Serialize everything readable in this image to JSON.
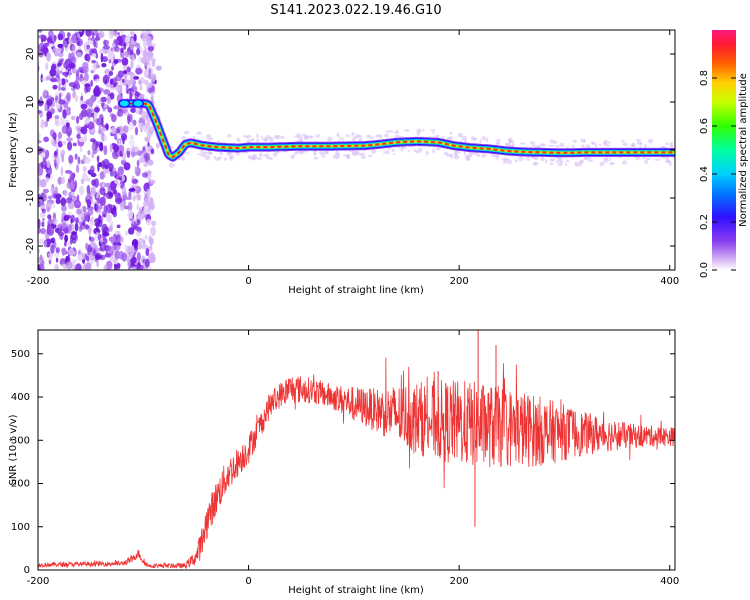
{
  "title": "S141.2023.022.19.46.G10",
  "colors": {
    "snr_line": "#ee3333",
    "spectrum_noise": "#7a1fe6",
    "spectrum_track_core": "#ff2a2a"
  },
  "chart_data": [
    {
      "type": "heatmap",
      "name": "spectrogram",
      "xlabel": "Height of straight line (km)",
      "ylabel": "Frequency (Hz)",
      "xlim": [
        -200,
        405
      ],
      "ylim": [
        -25,
        25
      ],
      "xticks": [
        -200,
        0,
        200,
        400
      ],
      "yticks": [
        -20,
        -10,
        0,
        10,
        20
      ],
      "grid": false,
      "colorbar": {
        "label": "Normalized spectral amplitude",
        "range": [
          0,
          1
        ],
        "ticks": [
          "0.0",
          "0.2",
          "0.4",
          "0.6",
          "0.8"
        ],
        "tick_values": [
          0.0,
          0.2,
          0.4,
          0.6,
          0.8
        ]
      },
      "noise_region_x": [
        -200,
        -90
      ],
      "ridge": {
        "x": [
          -120,
          -100,
          -95,
          -88,
          -82,
          -76,
          -72,
          -66,
          -60,
          -55,
          -45,
          -30,
          -10,
          0,
          20,
          50,
          80,
          110,
          125,
          140,
          160,
          180,
          195,
          210,
          230,
          245,
          260,
          280,
          300,
          320,
          340,
          360,
          380,
          405
        ],
        "y": [
          9.7,
          9.7,
          9.5,
          6.0,
          2.5,
          -1.0,
          -1.5,
          -0.5,
          1.2,
          1.5,
          1.0,
          0.6,
          0.4,
          0.6,
          0.6,
          0.8,
          0.8,
          0.9,
          1.2,
          1.6,
          1.8,
          1.6,
          0.9,
          0.5,
          0.2,
          -0.2,
          -0.4,
          -0.5,
          -0.6,
          -0.5,
          -0.5,
          -0.5,
          -0.5,
          -0.5
        ]
      }
    },
    {
      "type": "line",
      "name": "snr",
      "xlabel": "Height of straight line (km)",
      "ylabel": "SNR (10 * v/v)",
      "xlim": [
        -200,
        405
      ],
      "ylim": [
        0,
        555
      ],
      "xticks": [
        -200,
        0,
        200,
        400
      ],
      "yticks": [
        0,
        100,
        200,
        300,
        400,
        500
      ],
      "grid": false,
      "envelope": {
        "x": [
          -200,
          -120,
          -110,
          -105,
          -100,
          -95,
          -60,
          -50,
          -45,
          -40,
          -30,
          -20,
          -10,
          0,
          10,
          20,
          30,
          40,
          60,
          80,
          100,
          120,
          140,
          160,
          180,
          200,
          220,
          240,
          260,
          280,
          300,
          320,
          340,
          360,
          380,
          405
        ],
        "mean": [
          12,
          15,
          25,
          40,
          20,
          10,
          10,
          30,
          60,
          110,
          170,
          220,
          250,
          280,
          330,
          380,
          405,
          420,
          415,
          400,
          385,
          370,
          360,
          352,
          345,
          340,
          335,
          330,
          325,
          320,
          318,
          315,
          313,
          310,
          310,
          308
        ],
        "amp": [
          5,
          6,
          8,
          10,
          8,
          5,
          6,
          20,
          35,
          40,
          40,
          40,
          35,
          35,
          30,
          30,
          30,
          35,
          30,
          30,
          40,
          50,
          70,
          85,
          95,
          100,
          100,
          95,
          90,
          80,
          65,
          50,
          40,
          30,
          25,
          22
        ]
      },
      "spikes": [
        {
          "x": 218,
          "y": 555
        },
        {
          "x": 215,
          "y": 100
        },
        {
          "x": 180,
          "y": 460
        },
        {
          "x": 235,
          "y": 520
        }
      ]
    }
  ]
}
